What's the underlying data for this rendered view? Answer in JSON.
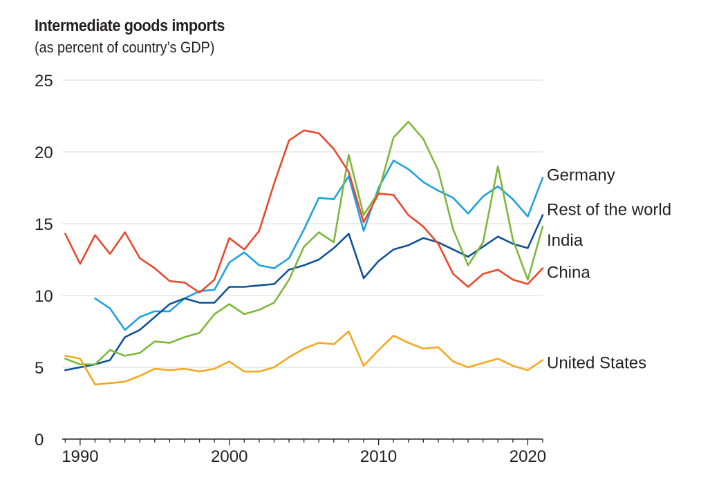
{
  "chart_data": {
    "type": "line",
    "title": "Intermediate goods imports",
    "subtitle": "(as percent of country’s GDP)",
    "xlabel": "",
    "ylabel": "",
    "xlim": [
      1988.8,
      2021
    ],
    "ylim": [
      0,
      25
    ],
    "grid": true,
    "yticks": [
      0,
      5,
      10,
      15,
      20,
      25
    ],
    "xticks": [
      1990,
      2000,
      2010,
      2020
    ],
    "x": [
      1989,
      1990,
      1991,
      1992,
      1993,
      1994,
      1995,
      1996,
      1997,
      1998,
      1999,
      2000,
      2001,
      2002,
      2003,
      2004,
      2005,
      2006,
      2007,
      2008,
      2009,
      2010,
      2011,
      2012,
      2013,
      2014,
      2015,
      2016,
      2017,
      2018,
      2019,
      2020,
      2021
    ],
    "series": [
      {
        "name": "Germany",
        "color": "#1ea0e2",
        "values": [
          null,
          null,
          9.8,
          9.1,
          7.6,
          8.5,
          8.9,
          8.9,
          9.8,
          10.3,
          10.4,
          12.3,
          13.0,
          12.1,
          11.9,
          12.6,
          14.6,
          16.8,
          16.7,
          18.3,
          14.5,
          17.5,
          19.4,
          18.8,
          17.9,
          17.3,
          16.8,
          15.7,
          16.9,
          17.6,
          16.7,
          15.5,
          18.2
        ]
      },
      {
        "name": "Rest of the world",
        "color": "#0e5196",
        "values": [
          4.8,
          5.0,
          5.2,
          5.5,
          7.1,
          7.6,
          8.5,
          9.4,
          9.8,
          9.5,
          9.5,
          10.6,
          10.6,
          10.7,
          10.8,
          11.8,
          12.1,
          12.5,
          13.3,
          14.3,
          11.2,
          12.4,
          13.2,
          13.5,
          14.0,
          13.7,
          13.2,
          12.7,
          13.4,
          14.1,
          13.6,
          13.3,
          15.6
        ]
      },
      {
        "name": "India",
        "color": "#7db83a",
        "values": [
          5.6,
          5.2,
          5.2,
          6.2,
          5.8,
          6.0,
          6.8,
          6.7,
          7.1,
          7.4,
          8.7,
          9.4,
          8.7,
          9.0,
          9.5,
          11.1,
          13.4,
          14.4,
          13.7,
          19.8,
          15.6,
          17.2,
          21.0,
          22.1,
          20.9,
          18.7,
          14.6,
          12.1,
          13.7,
          19.0,
          13.9,
          11.1,
          14.8
        ]
      },
      {
        "name": "China",
        "color": "#e8482c",
        "values": [
          14.3,
          12.2,
          14.2,
          12.9,
          14.4,
          12.6,
          11.9,
          11.0,
          10.9,
          10.2,
          11.1,
          14.0,
          13.2,
          14.5,
          17.8,
          20.8,
          21.5,
          21.3,
          20.2,
          18.6,
          15.1,
          17.1,
          17.0,
          15.6,
          14.8,
          13.6,
          11.5,
          10.6,
          11.5,
          11.8,
          11.1,
          10.8,
          11.9
        ]
      },
      {
        "name": "United States",
        "color": "#f5a71d",
        "values": [
          5.8,
          5.6,
          3.8,
          3.9,
          4.0,
          4.4,
          4.9,
          4.8,
          4.9,
          4.7,
          4.9,
          5.4,
          4.7,
          4.7,
          5.0,
          5.7,
          6.3,
          6.7,
          6.6,
          7.5,
          5.1,
          6.2,
          7.2,
          6.7,
          6.3,
          6.4,
          5.4,
          5.0,
          5.3,
          5.6,
          5.1,
          4.8,
          5.5
        ]
      }
    ],
    "legend": "inline labels at right end of lines"
  }
}
